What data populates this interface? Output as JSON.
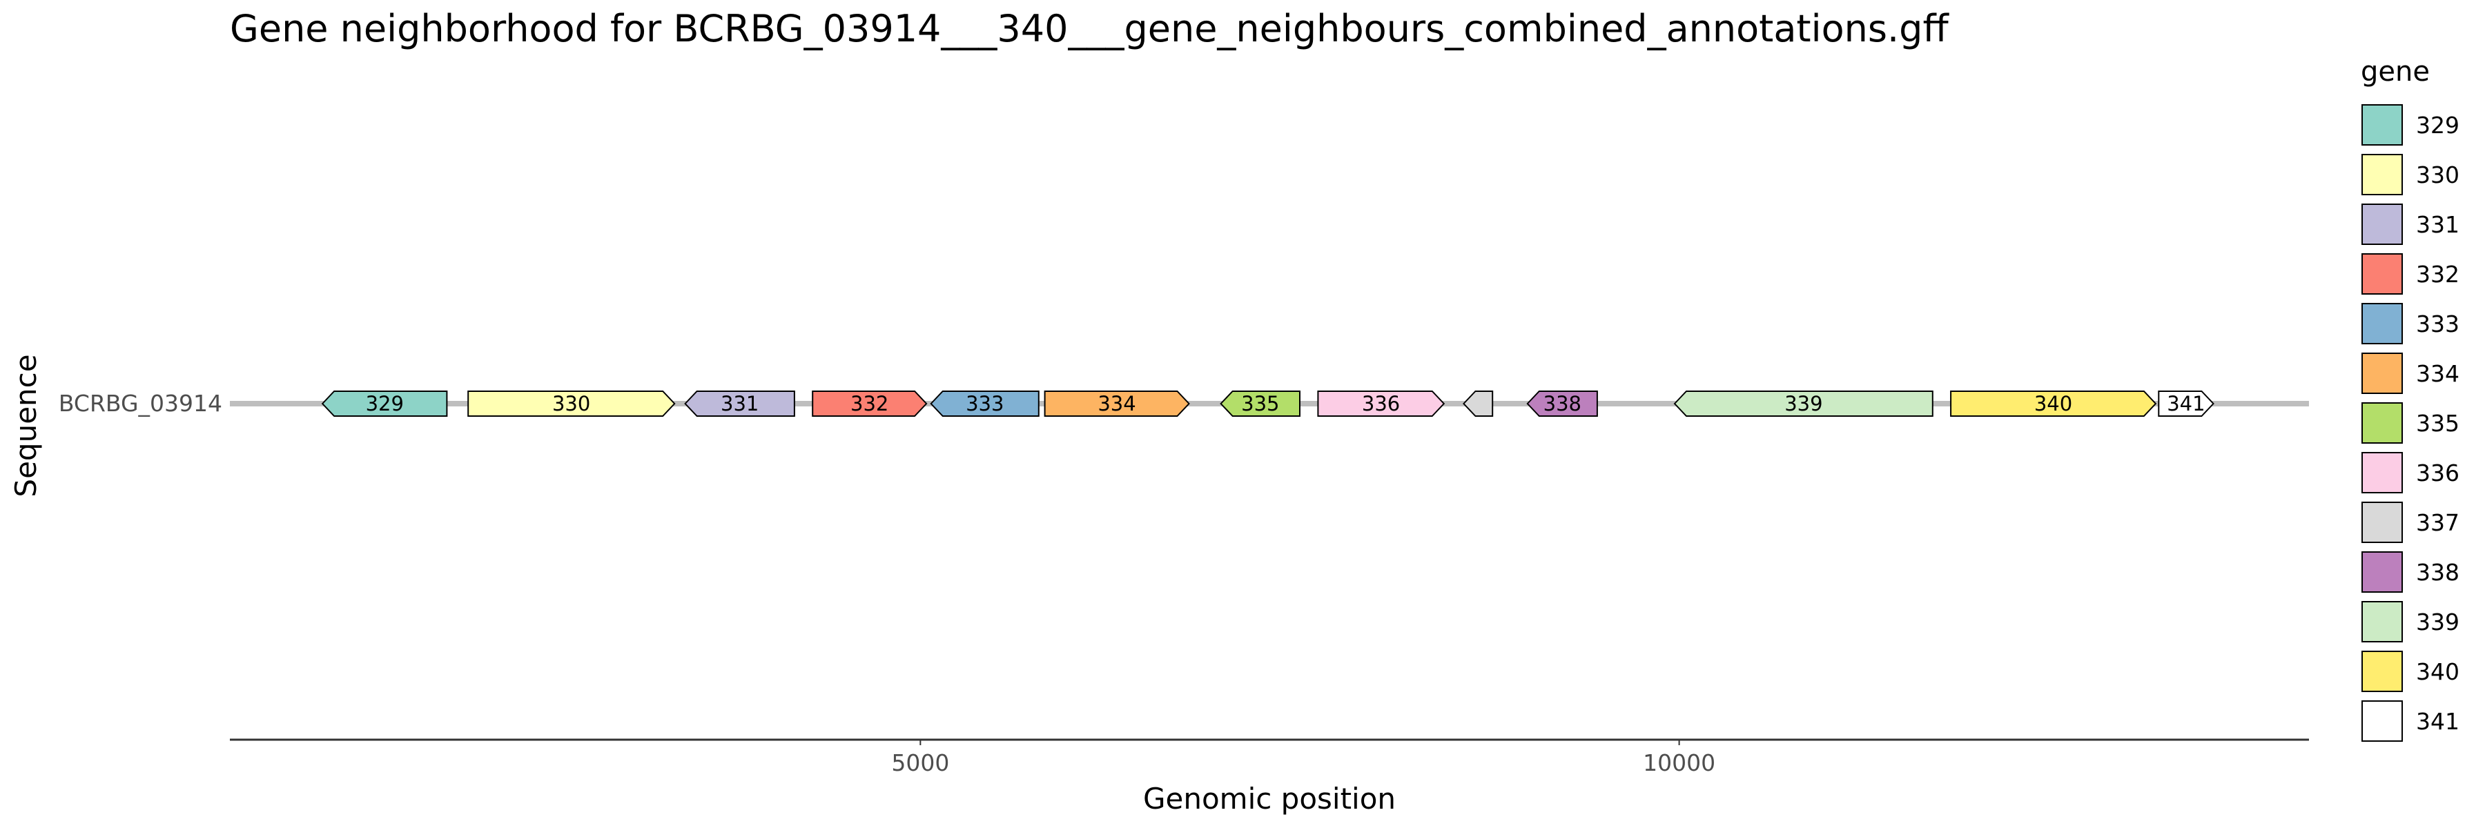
{
  "chart_data": {
    "type": "gene-arrow-map",
    "title": "Gene neighborhood for BCRBG_03914___340___gene_neighbours_combined_annotations.gff",
    "xlabel": "Genomic position",
    "ylabel": "Sequence",
    "xlim": [
      450,
      14150
    ],
    "xticks": [
      {
        "value": 5000,
        "label": "5000"
      },
      {
        "value": 10000,
        "label": "10000"
      }
    ],
    "grid": false,
    "legend": {
      "title": "gene",
      "position": "right"
    },
    "sequences": [
      {
        "name": "BCRBG_03914",
        "start": 450,
        "end": 14150,
        "genes": [
          {
            "gene": "329",
            "label": "329",
            "start": 1060,
            "end": 1880,
            "strand": "-",
            "color": "#8DD3C7"
          },
          {
            "gene": "330",
            "label": "330",
            "start": 2020,
            "end": 3380,
            "strand": "+",
            "color": "#FFFFB3"
          },
          {
            "gene": "331",
            "label": "331",
            "start": 3450,
            "end": 4170,
            "strand": "-",
            "color": "#BEBADA"
          },
          {
            "gene": "332",
            "label": "332",
            "start": 4290,
            "end": 5040,
            "strand": "+",
            "color": "#FB8072"
          },
          {
            "gene": "333",
            "label": "333",
            "start": 5070,
            "end": 5780,
            "strand": "-",
            "color": "#80B1D3"
          },
          {
            "gene": "334",
            "label": "334",
            "start": 5820,
            "end": 6770,
            "strand": "+",
            "color": "#FDB462"
          },
          {
            "gene": "335",
            "label": "335",
            "start": 6980,
            "end": 7500,
            "strand": "-",
            "color": "#B3DE69"
          },
          {
            "gene": "336",
            "label": "336",
            "start": 7620,
            "end": 8450,
            "strand": "+",
            "color": "#FCCDE5"
          },
          {
            "gene": "337",
            "label": "",
            "start": 8580,
            "end": 8770,
            "strand": "-",
            "color": "#D9D9D9"
          },
          {
            "gene": "338",
            "label": "338",
            "start": 9000,
            "end": 9460,
            "strand": "-",
            "color": "#BC80BD"
          },
          {
            "gene": "339",
            "label": "339",
            "start": 9970,
            "end": 11670,
            "strand": "-",
            "color": "#CCEBC5"
          },
          {
            "gene": "340",
            "label": "340",
            "start": 11790,
            "end": 13140,
            "strand": "+",
            "color": "#FFED6F"
          },
          {
            "gene": "341",
            "label": "341",
            "start": 13160,
            "end": 13520,
            "strand": "+",
            "color": "#FFFFFF"
          }
        ]
      }
    ],
    "legend_entries": [
      {
        "label": "329",
        "color": "#8DD3C7"
      },
      {
        "label": "330",
        "color": "#FFFFB3"
      },
      {
        "label": "331",
        "color": "#BEBADA"
      },
      {
        "label": "332",
        "color": "#FB8072"
      },
      {
        "label": "333",
        "color": "#80B1D3"
      },
      {
        "label": "334",
        "color": "#FDB462"
      },
      {
        "label": "335",
        "color": "#B3DE69"
      },
      {
        "label": "336",
        "color": "#FCCDE5"
      },
      {
        "label": "337",
        "color": "#D9D9D9"
      },
      {
        "label": "338",
        "color": "#BC80BD"
      },
      {
        "label": "339",
        "color": "#CCEBC5"
      },
      {
        "label": "340",
        "color": "#FFED6F"
      },
      {
        "label": "341",
        "color": "#FFFFFF"
      }
    ]
  }
}
